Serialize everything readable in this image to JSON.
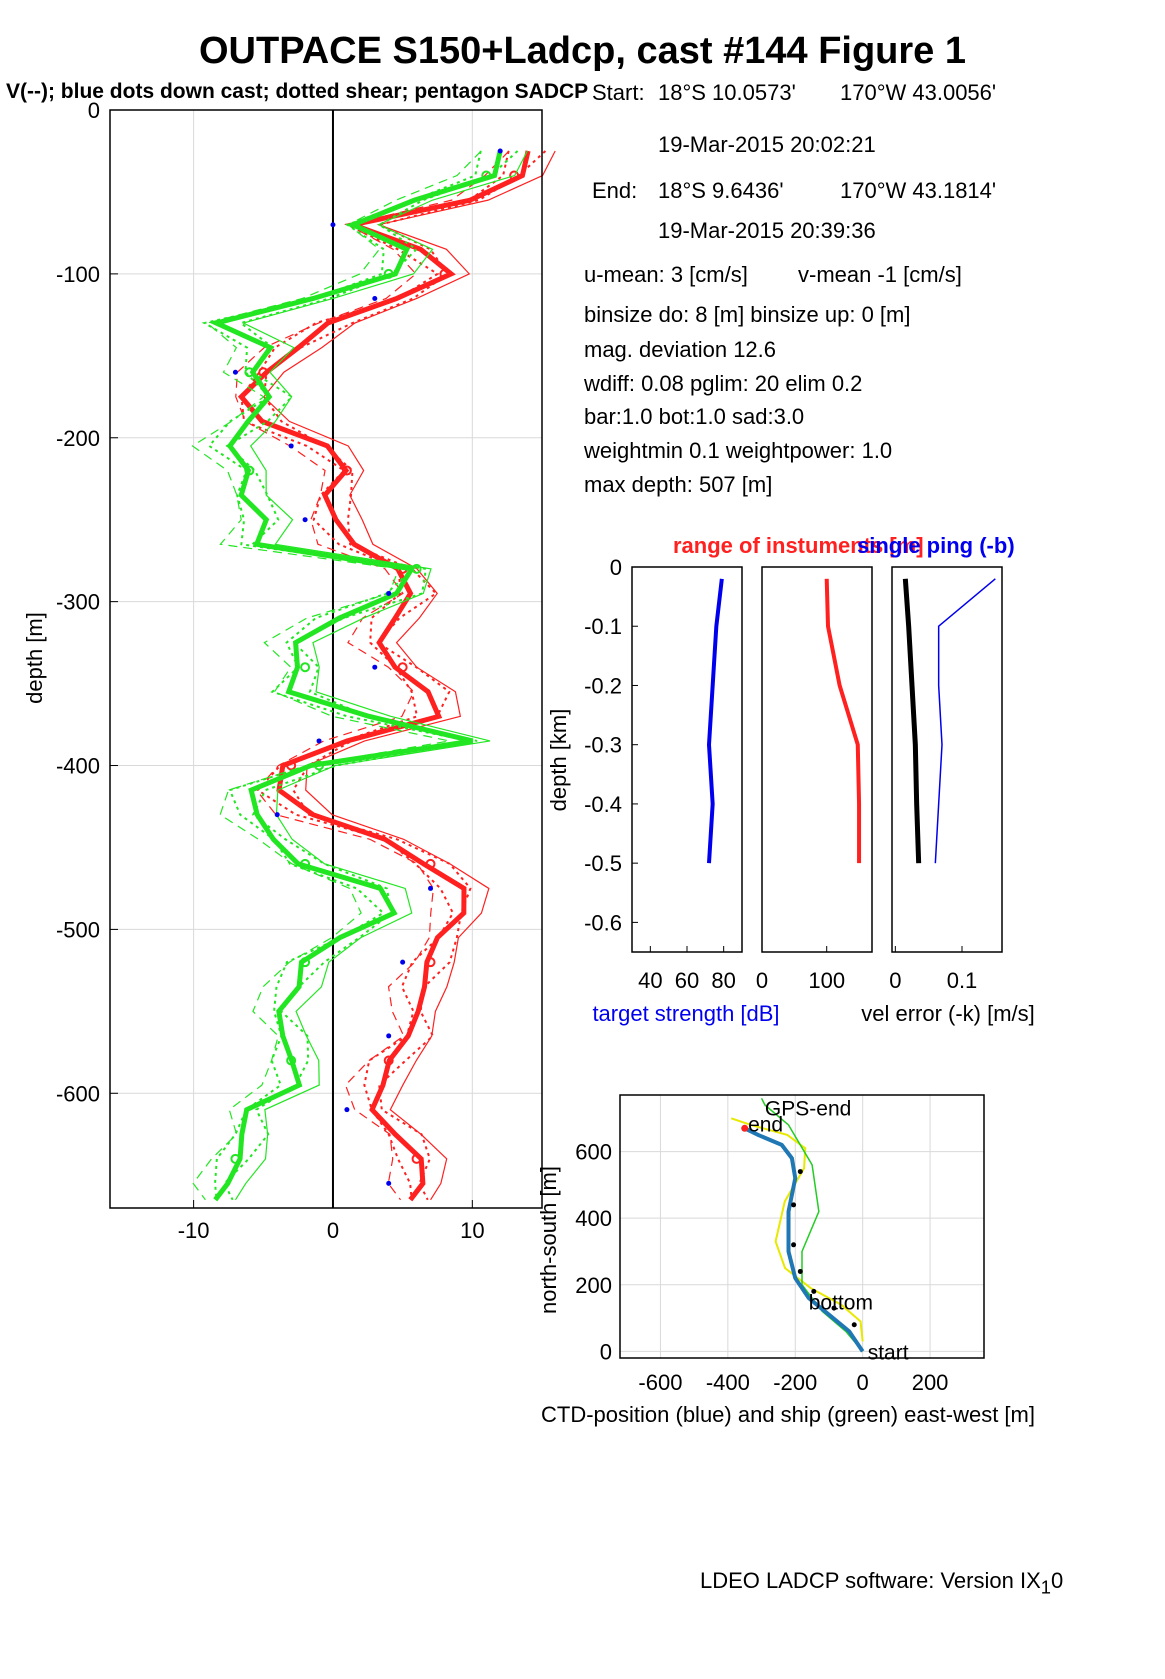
{
  "figure": {
    "title": "OUTPACE S150+Ladcp, cast #144  Figure 1",
    "subtitle": "V(--); blue dots down cast; dotted shear; pentagon SADCP",
    "footer_main": "LDEO LADCP software: Version IX",
    "footer_sub": "1",
    "footer_tail": "0"
  },
  "info": {
    "start_label": "Start:",
    "start_lat": "18°S 10.0573'",
    "start_lon": "170°W 43.0056'",
    "start_time": "19-Mar-2015 20:02:21",
    "end_label": "End:",
    "end_lat": "18°S  9.6436'",
    "end_lon": "170°W 43.1814'",
    "end_time": "19-Mar-2015 20:39:36",
    "u_mean": "u-mean:   3 [cm/s]",
    "v_mean": "v-mean  -1 [cm/s]",
    "binsize": "binsize do: 8 [m]  binsize up:  0 [m]",
    "mag_dev": "mag. deviation 12.6",
    "wdiff": "wdiff: 0.08  pglim: 20  elim 0.2",
    "bar": "  bar:1.0 bot:1.0 sad:3.0",
    "weight": "weightmin 0.1  weightpower: 1.0",
    "maxdepth": "max depth: 507 [m]"
  },
  "colors": {
    "u": "#ff2020",
    "v": "#22e622",
    "blue": "#0000ee",
    "traj": "#1f77b4",
    "ship": "#22cc22",
    "yellow": "#e8e800"
  },
  "chart_data": [
    {
      "type": "line",
      "ylabel": "depth [m]",
      "xlabel": "",
      "xlim": [
        -16,
        15
      ],
      "ylim": [
        -670,
        0
      ],
      "xticks": [
        -10,
        0,
        10
      ],
      "yticks": [
        0,
        -100,
        -200,
        -300,
        -400,
        -500,
        -600
      ],
      "grid": true,
      "depth": [
        -25,
        -40,
        -55,
        -70,
        -85,
        -100,
        -115,
        -130,
        -145,
        -160,
        -175,
        -190,
        -205,
        -220,
        -235,
        -250,
        -265,
        -280,
        -295,
        -310,
        -325,
        -340,
        -355,
        -370,
        -385,
        -400,
        -415,
        -430,
        -445,
        -460,
        -475,
        -490,
        -505,
        -520,
        -535,
        -550,
        -565,
        -580,
        -595,
        -610,
        -625,
        -640,
        -655,
        -665
      ],
      "series": [
        {
          "name": "u",
          "values": [
            14,
            13,
            10,
            2,
            6,
            8,
            5,
            0,
            -3,
            -5,
            -6,
            -5,
            -1,
            1,
            0,
            0,
            1,
            5,
            6,
            4,
            3,
            5,
            7,
            7,
            1,
            -3,
            -4,
            -2,
            4,
            7,
            9,
            9,
            8,
            7,
            6,
            6,
            6,
            4,
            3,
            3,
            5,
            6,
            6,
            6
          ]
        },
        {
          "name": "v",
          "values": [
            12,
            11,
            6,
            2,
            5,
            4,
            -1,
            -8,
            -5,
            -6,
            -4,
            -6,
            -8,
            -6,
            -6,
            -5,
            -6,
            6,
            5,
            0,
            -3,
            -2,
            -3,
            2,
            10,
            -1,
            -6,
            -6,
            -4,
            -2,
            3,
            4,
            1,
            -2,
            -3,
            -4,
            -3,
            -3,
            -3,
            -6,
            -6,
            -7,
            -8,
            -8
          ]
        }
      ]
    },
    {
      "type": "line",
      "title": "range of instuments [m]",
      "title2": "single ping (-b)",
      "ylabel": "depth [km]",
      "ylim": [
        -0.65,
        0
      ],
      "yticks": [
        0,
        -0.1,
        -0.2,
        -0.3,
        -0.4,
        -0.5,
        -0.6
      ],
      "panels": [
        {
          "xlabel": "target strength [dB]",
          "xticks": [
            40,
            60,
            80
          ],
          "xlim": [
            30,
            90
          ]
        },
        {
          "xlabel": "",
          "xticks": [
            0,
            100
          ],
          "xlim": [
            0,
            170
          ]
        },
        {
          "xlabel": "vel error (-k) [m/s]",
          "xticks": [
            0,
            0.1
          ],
          "xlim": [
            -0.005,
            0.16
          ]
        }
      ],
      "depth_km": [
        -0.02,
        -0.1,
        -0.2,
        -0.3,
        -0.4,
        -0.5
      ],
      "series": [
        {
          "name": "target_strength",
          "values": [
            79,
            76,
            74,
            72,
            74,
            72
          ]
        },
        {
          "name": "range",
          "values": [
            100,
            102,
            120,
            148,
            150,
            150
          ]
        },
        {
          "name": "vel_error",
          "values": [
            0.015,
            0.02,
            0.025,
            0.03,
            0.032,
            0.035
          ]
        },
        {
          "name": "single_ping",
          "values": [
            0.15,
            0.065,
            0.065,
            0.07,
            0.065,
            0.06
          ]
        }
      ]
    },
    {
      "type": "line",
      "xlabel": "CTD-position (blue) and ship (green) east-west [m]",
      "ylabel": "north-south [m]",
      "xlim": [
        -720,
        360
      ],
      "ylim": [
        -20,
        770
      ],
      "xticks": [
        -600,
        -400,
        -200,
        0,
        200
      ],
      "yticks": [
        0,
        200,
        400,
        600
      ],
      "labels": {
        "start": "start",
        "end": "end",
        "gps_end": "GPS-end",
        "bottom": "bottom"
      },
      "ctd": {
        "x": [
          0,
          -40,
          -100,
          -160,
          -200,
          -220,
          -220,
          -200,
          -210,
          -240,
          -310,
          -350
        ],
        "y": [
          0,
          60,
          110,
          160,
          220,
          300,
          420,
          520,
          580,
          620,
          650,
          670
        ]
      },
      "ship": {
        "x": [
          0,
          -50,
          -120,
          -180,
          -180,
          -130,
          -150,
          -220,
          -290,
          -300
        ],
        "y": [
          0,
          60,
          120,
          200,
          300,
          420,
          560,
          680,
          740,
          760
        ]
      }
    }
  ]
}
